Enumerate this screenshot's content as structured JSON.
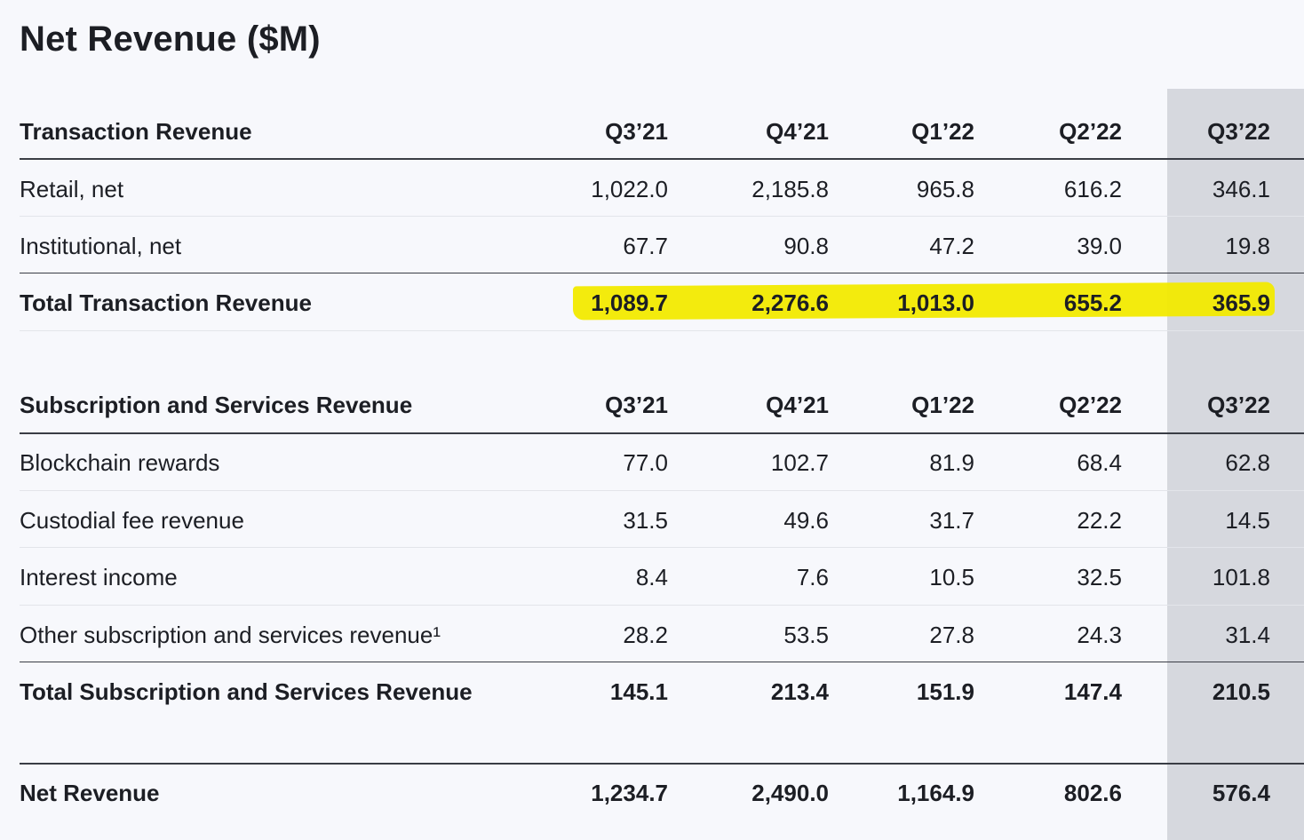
{
  "title": "Net Revenue ($M)",
  "quarters": [
    "Q3’21",
    "Q4’21",
    "Q1’22",
    "Q2’22",
    "Q3’22"
  ],
  "transaction": {
    "header": "Transaction Revenue",
    "rows": [
      {
        "label": "Retail, net",
        "values": [
          "1,022.0",
          "2,185.8",
          "965.8",
          "616.2",
          "346.1"
        ]
      },
      {
        "label": "Institutional, net",
        "values": [
          "67.7",
          "90.8",
          "47.2",
          "39.0",
          "19.8"
        ]
      }
    ],
    "total": {
      "label": "Total Transaction Revenue",
      "values": [
        "1,089.7",
        "2,276.6",
        "1,013.0",
        "655.2",
        "365.9"
      ]
    }
  },
  "subscription": {
    "header": "Subscription and Services Revenue",
    "rows": [
      {
        "label": "Blockchain rewards",
        "values": [
          "77.0",
          "102.7",
          "81.9",
          "68.4",
          "62.8"
        ]
      },
      {
        "label": "Custodial fee revenue",
        "values": [
          "31.5",
          "49.6",
          "31.7",
          "22.2",
          "14.5"
        ]
      },
      {
        "label": "Interest income",
        "values": [
          "8.4",
          "7.6",
          "10.5",
          "32.5",
          "101.8"
        ]
      },
      {
        "label": "Other subscription and services revenue¹",
        "values": [
          "28.2",
          "53.5",
          "27.8",
          "24.3",
          "31.4"
        ]
      }
    ],
    "total": {
      "label": "Total Subscription and Services Revenue",
      "values": [
        "145.1",
        "213.4",
        "151.9",
        "147.4",
        "210.5"
      ]
    }
  },
  "net": {
    "label": "Net Revenue",
    "values": [
      "1,234.7",
      "2,490.0",
      "1,164.9",
      "802.6",
      "576.4"
    ]
  },
  "colors": {
    "highlight": "#f2ea00",
    "shaded_column": "#d6d8de"
  }
}
